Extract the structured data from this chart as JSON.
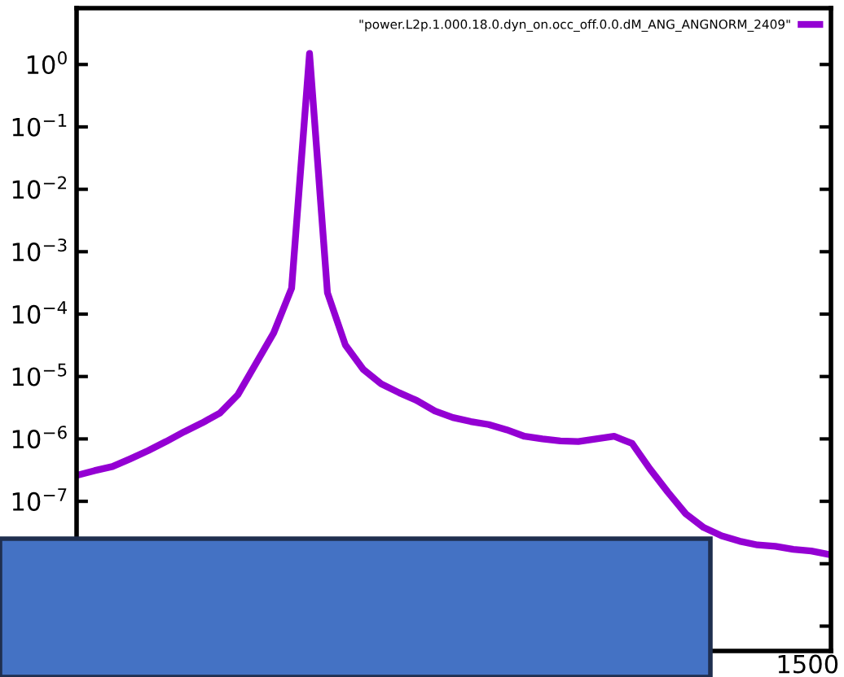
{
  "chart_data": {
    "type": "line",
    "categories": [
      null,
      null,
      null,
      null,
      null,
      null,
      null,
      null,
      null,
      null,
      null,
      null,
      null,
      null,
      null,
      null,
      null,
      null,
      null,
      null,
      null,
      null,
      null,
      null,
      null,
      null,
      null,
      null,
      null,
      null,
      null,
      null,
      null,
      null,
      null,
      null,
      null,
      null,
      null,
      null,
      null,
      null,
      null
    ],
    "series": [
      {
        "name": "\"power.L2p.1.000.18.0.dyn_on.occ_off.0.0.dM_ANG_ANGNORM_2409\"",
        "color": "#9400d3",
        "values": [
          2.6e-07,
          3.1e-07,
          3.6e-07,
          4.8e-07,
          6.5e-07,
          9.1e-07,
          1.3e-06,
          1.8e-06,
          2.6e-06,
          5.1e-06,
          1.6e-05,
          5e-05,
          0.00026,
          1.5,
          0.00022,
          3.2e-05,
          1.3e-05,
          7.6e-06,
          5.5e-06,
          4.1e-06,
          2.8e-06,
          2.2e-06,
          1.9e-06,
          1.7e-06,
          1.4e-06,
          1.1e-06,
          1e-06,
          9.3e-07,
          9.1e-07,
          1e-06,
          1.1e-06,
          8.5e-07,
          3.3e-07,
          1.4e-07,
          6.3e-08,
          3.8e-08,
          2.8e-08,
          2.3e-08,
          2e-08,
          1.9e-08,
          1.7e-08,
          1.6e-08,
          1.4e-08
        ]
      }
    ],
    "log": "y",
    "line_style": "solid",
    "legend": "top right",
    "grid": false,
    "annotations": [
      "1500"
    ],
    "ylim": [
      4e-10,
      8
    ],
    "yticks": [
      {
        "value": 1,
        "label": "10$^{0}$"
      },
      {
        "value": 0.1,
        "label": "10$^{−1}$"
      },
      {
        "value": 0.01,
        "label": "10$^{−2}$"
      },
      {
        "value": 0.001,
        "label": "10$^{−3}$"
      },
      {
        "value": 0.0001,
        "label": "10$^{−4}$"
      },
      {
        "value": 1e-05,
        "label": "10$^{−5}$"
      },
      {
        "value": 1e-06,
        "label": "10$^{−6}$"
      },
      {
        "value": 1e-07,
        "label": "10$^{−7}$"
      },
      {
        "value": 1e-08,
        "label": null
      },
      {
        "value": 1e-09,
        "label": null
      }
    ]
  }
}
